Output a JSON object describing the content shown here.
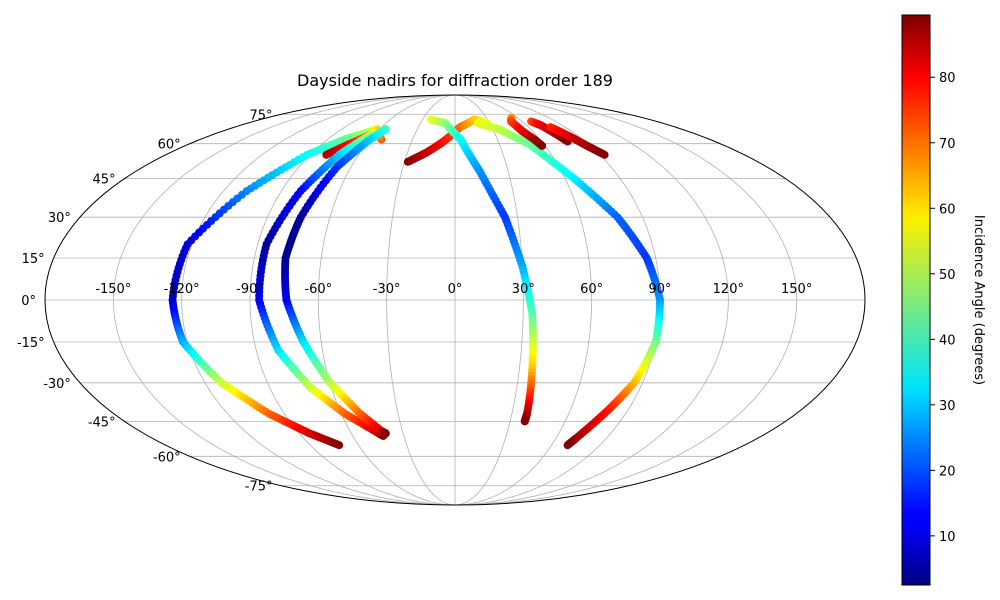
{
  "chart_data": {
    "type": "scatter",
    "projection": "mollweide",
    "title": "Dayside nadirs for diffraction order 189",
    "grid": true,
    "lon_ticks": [
      -150,
      -120,
      -90,
      -60,
      -30,
      0,
      30,
      60,
      90,
      120,
      150
    ],
    "lon_tick_labels": [
      "-150°",
      "-120°",
      "-90°",
      "-60°",
      "-30°",
      "0°",
      "30°",
      "60°",
      "90°",
      "120°",
      "150°"
    ],
    "lat_ticks": [
      -75,
      -60,
      -45,
      -30,
      -15,
      0,
      15,
      30,
      45,
      60,
      75
    ],
    "lat_tick_labels": [
      "-75°",
      "-60°",
      "-45°",
      "-30°",
      "-15°",
      "0°",
      "15°",
      "30°",
      "45°",
      "60°",
      "75°"
    ],
    "colorbar": {
      "label": "Incidence Angle (degrees)",
      "cmap": "jet",
      "range": [
        2.5,
        89.5
      ],
      "ticks": [
        10,
        20,
        30,
        40,
        50,
        60,
        70,
        80
      ],
      "tick_labels": [
        "10",
        "20",
        "30",
        "40",
        "50",
        "60",
        "70",
        "80"
      ]
    },
    "tracks": [
      {
        "points": [
          [
            -52,
            62,
            72
          ],
          [
            -62,
            67,
            60
          ],
          [
            -68,
            65,
            50
          ],
          [
            -78,
            62,
            44
          ],
          [
            -92,
            55,
            36
          ],
          [
            -108,
            40,
            25
          ],
          [
            -122,
            20,
            10
          ],
          [
            -124,
            0,
            8
          ],
          [
            -122,
            -15,
            28
          ],
          [
            -112,
            -30,
            52
          ],
          [
            -98,
            -42,
            70
          ],
          [
            -84,
            -50,
            82
          ],
          [
            -72,
            -55,
            89
          ]
        ]
      },
      {
        "points": [
          [
            -80,
            55,
            86
          ],
          [
            -73,
            59,
            80
          ],
          [
            -65,
            63,
            72
          ],
          [
            -60,
            66,
            64
          ],
          [
            -63,
            64,
            50
          ],
          [
            -72,
            55,
            32
          ],
          [
            -80,
            40,
            14
          ],
          [
            -86,
            20,
            5
          ],
          [
            -86,
            0,
            12
          ],
          [
            -80,
            -18,
            32
          ],
          [
            -70,
            -32,
            52
          ],
          [
            -58,
            -42,
            70
          ],
          [
            -44,
            -50,
            83
          ],
          [
            -42,
            -51,
            89
          ]
        ]
      },
      {
        "points": [
          [
            -55,
            67,
            40
          ],
          [
            -60,
            62,
            32
          ],
          [
            -68,
            50,
            18
          ],
          [
            -74,
            30,
            5
          ],
          [
            -76,
            15,
            3
          ],
          [
            -74,
            0,
            12
          ],
          [
            -68,
            -15,
            32
          ],
          [
            -60,
            -30,
            50
          ],
          [
            -50,
            -42,
            70
          ],
          [
            -42,
            -49,
            82
          ],
          [
            -40,
            -50,
            89
          ]
        ]
      },
      {
        "points": [
          [
            -28,
            52,
            89
          ],
          [
            -18,
            56,
            84
          ],
          [
            -8,
            61,
            78
          ],
          [
            4,
            68,
            70
          ],
          [
            18,
            72,
            62
          ],
          [
            28,
            70,
            56
          ]
        ]
      },
      {
        "points": [
          [
            -22,
            72,
            56
          ],
          [
            -8,
            70,
            48
          ],
          [
            4,
            62,
            36
          ],
          [
            14,
            48,
            26
          ],
          [
            24,
            30,
            18
          ],
          [
            30,
            12,
            28
          ],
          [
            34,
            -5,
            42
          ],
          [
            36,
            -25,
            62
          ],
          [
            38,
            -42,
            85
          ],
          [
            38,
            -45,
            89
          ]
        ]
      },
      {
        "points": [
          [
            20,
            70,
            55
          ],
          [
            35,
            67,
            52
          ],
          [
            50,
            60,
            44
          ],
          [
            65,
            45,
            34
          ],
          [
            78,
            30,
            22
          ],
          [
            86,
            15,
            18
          ],
          [
            90,
            0,
            26
          ],
          [
            90,
            -15,
            44
          ],
          [
            86,
            -30,
            62
          ],
          [
            80,
            -40,
            76
          ],
          [
            72,
            -52,
            86
          ],
          [
            70,
            -55,
            89
          ]
        ]
      },
      {
        "points": [
          [
            54,
            73,
            64
          ],
          [
            50,
            71,
            72
          ],
          [
            52,
            66,
            80
          ],
          [
            56,
            62,
            86
          ],
          [
            58,
            59,
            89
          ]
        ]
      },
      {
        "points": [
          [
            68,
            71,
            72
          ],
          [
            72,
            69,
            80
          ],
          [
            76,
            64,
            86
          ],
          [
            78,
            61,
            89
          ]
        ]
      },
      {
        "points": [
          [
            78,
            68,
            76
          ],
          [
            84,
            63,
            82
          ],
          [
            88,
            59,
            86
          ],
          [
            93,
            55,
            89
          ]
        ]
      }
    ]
  }
}
